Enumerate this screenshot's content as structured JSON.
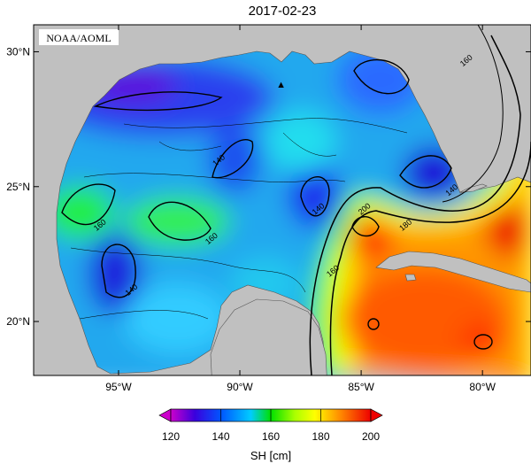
{
  "title": "2017-02-23",
  "credit": "NOAA/AOML",
  "lat_ticks": [
    {
      "value": 30,
      "label": "30°N"
    },
    {
      "value": 25,
      "label": "25°N"
    },
    {
      "value": 20,
      "label": "20°N"
    }
  ],
  "lon_ticks": [
    {
      "value": -95,
      "label": "95°W"
    },
    {
      "value": -90,
      "label": "90°W"
    },
    {
      "value": -85,
      "label": "85°W"
    },
    {
      "value": -80,
      "label": "80°W"
    }
  ],
  "extent": {
    "lon": [
      -98.5,
      -78
    ],
    "lat": [
      18,
      31
    ]
  },
  "colorbar": {
    "label": "SH [cm]",
    "ticks": [
      "120",
      "140",
      "160",
      "180",
      "200"
    ],
    "range": [
      120,
      200
    ]
  },
  "contour_labels": [
    {
      "text": "140",
      "lon": -90.8,
      "lat": 25.9
    },
    {
      "text": "140",
      "lon": -86.7,
      "lat": 24.1
    },
    {
      "text": "140",
      "lon": -94.4,
      "lat": 21.1
    },
    {
      "text": "160",
      "lon": -95.7,
      "lat": 23.5
    },
    {
      "text": "160",
      "lon": -91.1,
      "lat": 23.0
    },
    {
      "text": "160",
      "lon": -86.1,
      "lat": 21.8
    },
    {
      "text": "160",
      "lon": -80.6,
      "lat": 29.6
    },
    {
      "text": "180",
      "lon": -83.1,
      "lat": 23.5
    },
    {
      "text": "200",
      "lon": -84.8,
      "lat": 24.1
    },
    {
      "text": "140",
      "lon": -81.2,
      "lat": 24.8
    }
  ],
  "marker": {
    "symbol": "▲",
    "lon": -88.3,
    "lat": 28.8
  },
  "colors": {
    "land": "#c0c0c0",
    "colormap": [
      "#cc00cc",
      "#2200dd",
      "#0077ff",
      "#00ddff",
      "#00e000",
      "#ffff00",
      "#ff8800",
      "#ff4400",
      "#ee0000"
    ]
  }
}
